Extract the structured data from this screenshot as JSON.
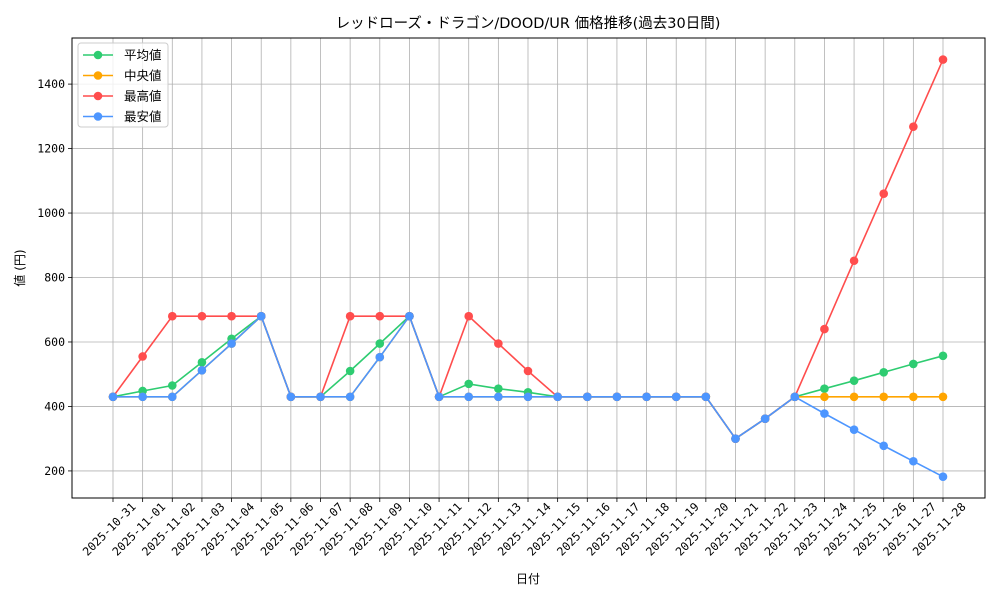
{
  "chart_data": {
    "type": "line",
    "title": "レッドローズ・ドラゴン/DOOD/UR 価格推移(過去30日間)",
    "xlabel": "日付",
    "ylabel": "値 (円)",
    "ylim": [
      116,
      1543
    ],
    "yticks": [
      200,
      400,
      600,
      800,
      1000,
      1200,
      1400
    ],
    "grid": true,
    "legend_position": "upper left",
    "x": [
      "2025-10-31",
      "2025-11-01",
      "2025-11-02",
      "2025-11-03",
      "2025-11-04",
      "2025-11-05",
      "2025-11-06",
      "2025-11-07",
      "2025-11-08",
      "2025-11-09",
      "2025-11-10",
      "2025-11-11",
      "2025-11-12",
      "2025-11-13",
      "2025-11-14",
      "2025-11-15",
      "2025-11-16",
      "2025-11-17",
      "2025-11-18",
      "2025-11-19",
      "2025-11-20",
      "2025-11-21",
      "2025-11-22",
      "2025-11-23",
      "2025-11-24",
      "2025-11-25",
      "2025-11-26",
      "2025-11-27",
      "2025-11-28"
    ],
    "series": [
      {
        "name": "平均値",
        "color": "#2ecc71",
        "values": [
          430,
          448,
          465,
          537,
          610,
          680,
          430,
          430,
          510,
          595,
          680,
          430,
          470,
          455,
          444,
          430,
          430,
          430,
          430,
          430,
          430,
          300,
          362,
          430,
          455,
          480,
          506,
          532,
          557
        ]
      },
      {
        "name": "中央値",
        "color": "#ffa500",
        "values": [
          430,
          430,
          430,
          512,
          595,
          680,
          430,
          430,
          430,
          553,
          680,
          430,
          430,
          430,
          430,
          430,
          430,
          430,
          430,
          430,
          430,
          300,
          362,
          430,
          430,
          430,
          430,
          430,
          430
        ]
      },
      {
        "name": "最高値",
        "color": "#ff4d4d",
        "values": [
          430,
          555,
          680,
          680,
          680,
          680,
          430,
          430,
          680,
          680,
          680,
          430,
          680,
          595,
          510,
          430,
          430,
          430,
          430,
          430,
          430,
          300,
          362,
          430,
          640,
          852,
          1060,
          1268,
          1476
        ]
      },
      {
        "name": "最安値",
        "color": "#4d96ff",
        "values": [
          430,
          430,
          430,
          512,
          595,
          680,
          430,
          430,
          430,
          553,
          680,
          430,
          430,
          430,
          430,
          430,
          430,
          430,
          430,
          430,
          430,
          300,
          362,
          430,
          378,
          328,
          278,
          230,
          182
        ]
      }
    ]
  }
}
